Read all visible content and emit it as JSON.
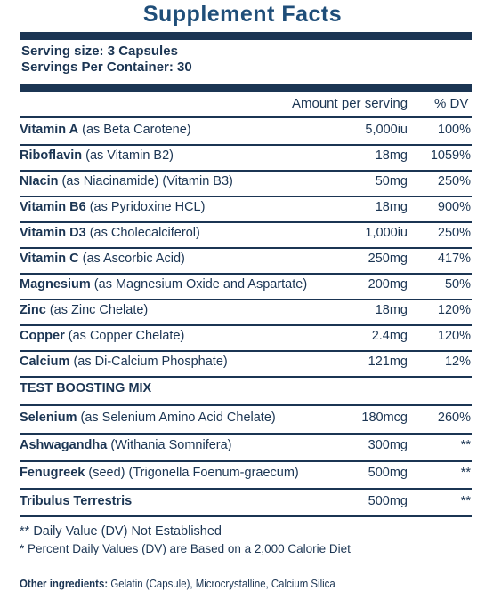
{
  "header": {
    "title": "Supplement Facts",
    "serving_size": "Serving size: 3 Capsules",
    "servings_per_container": "Servings Per Container: 30"
  },
  "table": {
    "columns": [
      "Amount per serving",
      "% DV"
    ],
    "rows": [
      {
        "name": "Vitamin A",
        "detail": "(as Beta Carotene)",
        "amount": "5,000iu",
        "dv": "100%"
      },
      {
        "name": "Riboflavin",
        "detail": "(as Vitamin B2)",
        "amount": "18mg",
        "dv": "1059%"
      },
      {
        "name": "NIacin",
        "detail": "(as Niacinamide) (Vitamin B3)",
        "amount": "50mg",
        "dv": "250%"
      },
      {
        "name": "Vitamin B6",
        "detail": "(as Pyridoxine HCL)",
        "amount": "18mg",
        "dv": "900%"
      },
      {
        "name": "Vitamin D3",
        "detail": "(as Cholecalciferol)",
        "amount": "1,000iu",
        "dv": "250%"
      },
      {
        "name": "Vitamin C",
        "detail": "(as Ascorbic Acid)",
        "amount": "250mg",
        "dv": "417%"
      },
      {
        "name": "Magnesium",
        "detail": "(as Magnesium Oxide and Aspartate)",
        "amount": "200mg",
        "dv": "50%"
      },
      {
        "name": "Zinc",
        "detail": "(as Zinc Chelate)",
        "amount": "18mg",
        "dv": "120%"
      },
      {
        "name": "Copper",
        "detail": "(as Copper Chelate)",
        "amount": "2.4mg",
        "dv": "120%"
      },
      {
        "name": "Calcium",
        "detail": "(as Di-Calcium Phosphate)",
        "amount": "121mg",
        "dv": "12%"
      },
      {
        "section": "TEST BOOSTING MIX"
      },
      {
        "name": "Selenium",
        "detail": "(as Selenium Amino Acid Chelate)",
        "amount": "180mcg",
        "dv": "260%"
      },
      {
        "name": "Ashwagandha",
        "detail": "(Withania Somnifera)",
        "amount": "300mg",
        "dv": "**"
      },
      {
        "name": "Fenugreek",
        "detail": "(seed) (Trigonella Foenum-graecum)",
        "amount": "500mg",
        "dv": "**"
      },
      {
        "name": "Tribulus Terrestris",
        "amount": "500mg",
        "dv": "**"
      }
    ]
  },
  "footnotes": [
    "** Daily Value (DV) Not Established",
    "* Percent Daily Values (DV) are Based on a 2,000 Calorie Diet"
  ],
  "other_ingredients": {
    "label": "Other ingredients:",
    "text": "Gelatin (Capsule), Microcrystalline, Calcium Silica"
  }
}
